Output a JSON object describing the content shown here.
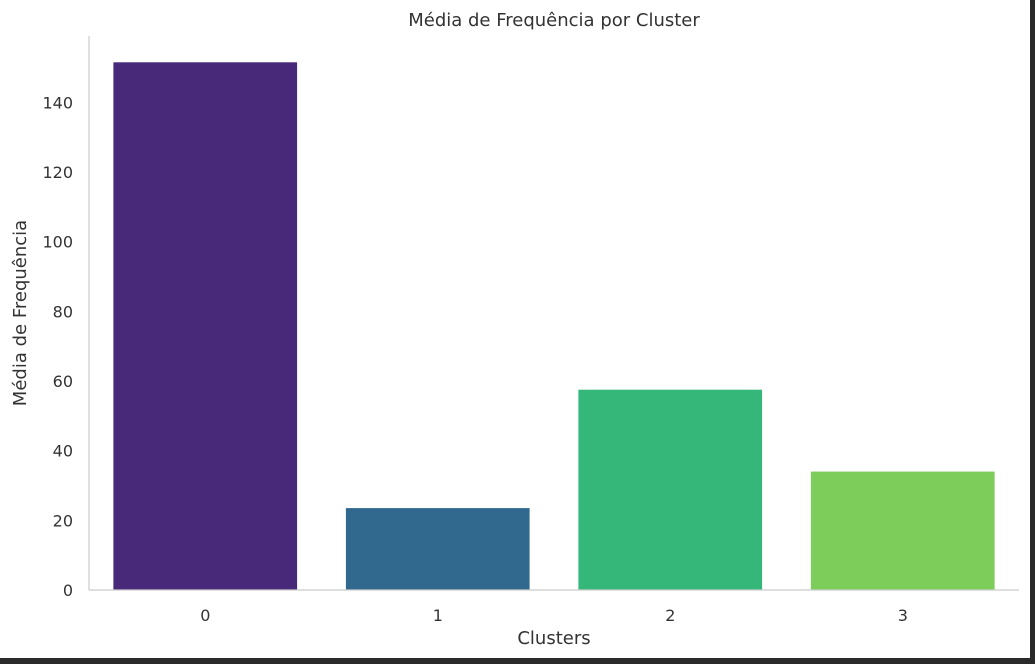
{
  "chart_data": {
    "type": "bar",
    "title": "Média de Frequência por Cluster",
    "xlabel": "Clusters",
    "ylabel": "Média de Frequência",
    "categories": [
      "0",
      "1",
      "2",
      "3"
    ],
    "values": [
      151.5,
      23.5,
      57.5,
      34
    ],
    "colors": [
      "#482878",
      "#31688e",
      "#35b779",
      "#7ccd5a"
    ],
    "ylim": [
      0,
      160
    ],
    "yticks": [
      0,
      20,
      40,
      60,
      80,
      100,
      120,
      140
    ],
    "grid": false,
    "legend": "none"
  }
}
